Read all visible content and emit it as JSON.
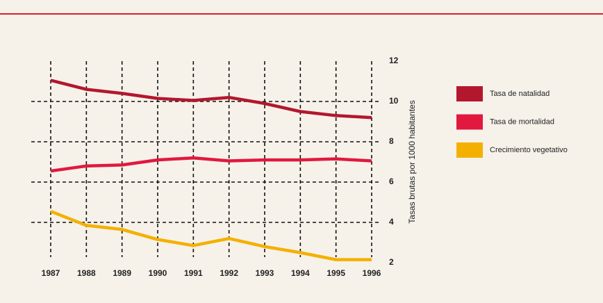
{
  "chart_data": {
    "type": "line",
    "categories": [
      "1987",
      "1988",
      "1989",
      "1990",
      "1991",
      "1992",
      "1993",
      "1994",
      "1995",
      "1996"
    ],
    "series": [
      {
        "name": "Tasa de natalidad",
        "color": "#b3172e",
        "values": [
          11.05,
          10.6,
          10.4,
          10.15,
          10.05,
          10.2,
          9.9,
          9.5,
          9.3,
          9.2
        ]
      },
      {
        "name": "Tasa de mortalidad",
        "color": "#e2183f",
        "values": [
          6.55,
          6.8,
          6.85,
          7.1,
          7.2,
          7.05,
          7.1,
          7.1,
          7.15,
          7.05
        ]
      },
      {
        "name": "Crecimiento vegetativo",
        "color": "#f4b000",
        "values": [
          4.55,
          3.85,
          3.65,
          3.15,
          2.85,
          3.2,
          2.8,
          2.5,
          2.15,
          2.15
        ]
      }
    ],
    "y_label": "Tasas brutas por 1000 habitantes",
    "ylim": [
      2,
      12
    ],
    "yticks": [
      2,
      4,
      6,
      8,
      10,
      12
    ],
    "grid": true,
    "legend": "right"
  }
}
